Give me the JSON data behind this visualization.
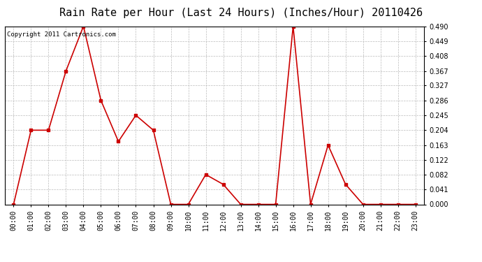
{
  "title": "Rain Rate per Hour (Last 24 Hours) (Inches/Hour) 20110426",
  "copyright": "Copyright 2011 Cartronics.com",
  "hours": [
    "00:00",
    "01:00",
    "02:00",
    "03:00",
    "04:00",
    "05:00",
    "06:00",
    "07:00",
    "08:00",
    "09:00",
    "10:00",
    "11:00",
    "12:00",
    "13:00",
    "14:00",
    "15:00",
    "16:00",
    "17:00",
    "18:00",
    "19:00",
    "20:00",
    "21:00",
    "22:00",
    "23:00"
  ],
  "values": [
    0.0,
    0.204,
    0.204,
    0.367,
    0.49,
    0.286,
    0.173,
    0.245,
    0.204,
    0.0,
    0.0,
    0.082,
    0.055,
    0.0,
    0.0,
    0.0,
    0.49,
    0.0,
    0.163,
    0.055,
    0.0,
    0.0,
    0.0,
    0.0
  ],
  "yticks": [
    0.0,
    0.041,
    0.082,
    0.122,
    0.163,
    0.204,
    0.245,
    0.286,
    0.327,
    0.367,
    0.408,
    0.449,
    0.49
  ],
  "ylim": [
    0.0,
    0.49
  ],
  "line_color": "#cc0000",
  "marker": "s",
  "marker_size": 2.5,
  "bg_color": "#ffffff",
  "grid_color": "#bbbbbb",
  "title_fontsize": 11,
  "tick_fontsize": 7,
  "copyright_fontsize": 6.5
}
